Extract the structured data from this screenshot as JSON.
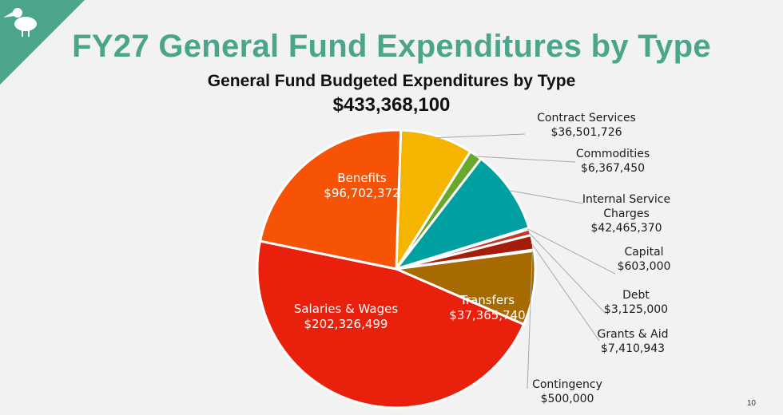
{
  "slide": {
    "title": "FY27 General Fund Expenditures by Type",
    "page_number": "10",
    "logo": "pelican-logo-icon",
    "colors": {
      "title": "#4aa58b",
      "corner": "#4aa58b"
    }
  },
  "chart_data": {
    "type": "pie",
    "title": "General Fund Budgeted Expenditures by Type",
    "subtitle": "$433,368,100",
    "slices": [
      {
        "label": "Salaries & Wages",
        "value_label": "$202,326,499",
        "value": 202326499,
        "color": "#e8200c"
      },
      {
        "label": "Benefits",
        "value_label": "$96,702,372",
        "value": 96702372,
        "color": "#f75307"
      },
      {
        "label": "Contract Services",
        "value_label": "$36,501,726",
        "value": 36501726,
        "color": "#f4b400"
      },
      {
        "label": "Commodities",
        "value_label": "$6,367,450",
        "value": 6367450,
        "color": "#6aa82c"
      },
      {
        "label": "Internal Service Charges",
        "value_label": "$42,465,370",
        "value": 42465370,
        "color": "#00a0a0"
      },
      {
        "label": "Capital",
        "value_label": "$603,000",
        "value": 603000,
        "color": "#6e6e6e"
      },
      {
        "label": "Debt",
        "value_label": "$3,125,000",
        "value": 3125000,
        "color": "#c0392b"
      },
      {
        "label": "Grants & Aid",
        "value_label": "$7,410,943",
        "value": 7410943,
        "color": "#a51d0a"
      },
      {
        "label": "Contingency",
        "value_label": "$500,000",
        "value": 500000,
        "color": "#d4c58a"
      },
      {
        "label": "Transfers",
        "value_label": "$37,365,740",
        "value": 37365740,
        "color": "#a66a00"
      }
    ]
  }
}
